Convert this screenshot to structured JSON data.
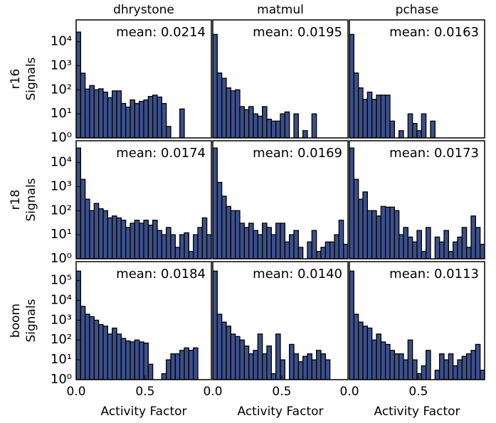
{
  "chart_data": [
    {
      "type": "histogram",
      "title": "dhrystone",
      "ylabel": [
        "r16",
        "Signals"
      ],
      "annotation": "mean: 0.0214",
      "log_y": true,
      "color": "#3b4f8a",
      "bins": [
        0,
        0.0327,
        0.0653,
        0.098,
        0.1307,
        0.1633,
        0.196,
        0.2287,
        0.2613,
        0.294,
        0.3267,
        0.3593,
        0.392,
        0.4247,
        0.4573,
        0.49,
        0.5227,
        0.5553,
        0.588,
        0.6207,
        0.6533,
        0.686,
        0.7187,
        0.7513,
        0.784,
        0.8167,
        0.8493,
        0.882,
        0.9147,
        0.9473,
        0.98
      ],
      "values": [
        25000,
        490,
        107,
        150,
        100,
        110,
        80,
        47,
        90,
        90,
        27,
        19,
        38,
        27,
        33,
        38,
        53,
        60,
        50,
        27,
        3,
        0,
        0,
        16,
        0,
        0,
        0,
        0,
        0,
        0
      ],
      "xlim": [
        0,
        0.98
      ],
      "ylim": [
        1,
        80000
      ],
      "yticks": [
        {
          "value": 1,
          "label": "10⁰"
        },
        {
          "value": 10,
          "label": "10¹"
        },
        {
          "value": 100,
          "label": "10²"
        },
        {
          "value": 1000,
          "label": "10³"
        },
        {
          "value": 10000,
          "label": "10⁴"
        }
      ]
    },
    {
      "type": "histogram",
      "title": "matmul",
      "annotation": "mean: 0.0195",
      "log_y": true,
      "color": "#3b4f8a",
      "bins": [
        0,
        0.0327,
        0.0653,
        0.098,
        0.1307,
        0.1633,
        0.196,
        0.2287,
        0.2613,
        0.294,
        0.3267,
        0.3593,
        0.392,
        0.4247,
        0.4573,
        0.49,
        0.5227,
        0.5553,
        0.588,
        0.6207,
        0.6533,
        0.686,
        0.7187,
        0.7513,
        0.784,
        0.8167,
        0.8493,
        0.882,
        0.9147,
        0.9473,
        0.98
      ],
      "values": [
        20000,
        500,
        300,
        120,
        90,
        100,
        20,
        15,
        20,
        10,
        8,
        20,
        6,
        5,
        5,
        10,
        12,
        0,
        10,
        0,
        2,
        0,
        10,
        0,
        0,
        0,
        0,
        0,
        0,
        0
      ],
      "xlim": [
        0,
        0.98
      ],
      "ylim": [
        1,
        80000
      ]
    },
    {
      "type": "histogram",
      "title": "pchase",
      "annotation": "mean: 0.0163",
      "log_y": true,
      "color": "#3b4f8a",
      "bins": [
        0,
        0.0327,
        0.0653,
        0.098,
        0.1307,
        0.1633,
        0.196,
        0.2287,
        0.2613,
        0.294,
        0.3267,
        0.3593,
        0.392,
        0.4247,
        0.4573,
        0.49,
        0.5227,
        0.5553,
        0.588,
        0.6207,
        0.6533,
        0.686,
        0.7187,
        0.7513,
        0.784,
        0.8167,
        0.8493,
        0.882,
        0.9147,
        0.9473,
        0.98
      ],
      "values": [
        20000,
        500,
        120,
        40,
        80,
        40,
        60,
        60,
        60,
        5,
        0,
        2,
        1,
        10,
        4,
        2,
        10,
        1,
        5,
        0,
        0,
        0,
        0,
        0,
        0,
        0,
        0,
        0,
        0,
        0
      ],
      "xlim": [
        0,
        0.98
      ],
      "ylim": [
        1,
        80000
      ]
    },
    {
      "type": "histogram",
      "ylabel": [
        "r18",
        "Signals"
      ],
      "annotation": "mean: 0.0174",
      "log_y": true,
      "color": "#3b4f8a",
      "bins": [
        0,
        0.0327,
        0.0653,
        0.098,
        0.1307,
        0.1633,
        0.196,
        0.2287,
        0.2613,
        0.294,
        0.3267,
        0.3593,
        0.392,
        0.4247,
        0.4573,
        0.49,
        0.5227,
        0.5553,
        0.588,
        0.6207,
        0.6533,
        0.686,
        0.7187,
        0.7513,
        0.784,
        0.8167,
        0.8493,
        0.882,
        0.9147,
        0.9473,
        0.98
      ],
      "values": [
        40000,
        2000,
        300,
        100,
        200,
        120,
        100,
        50,
        60,
        50,
        40,
        20,
        30,
        40,
        30,
        40,
        25,
        40,
        15,
        10,
        20,
        10,
        3,
        10,
        12,
        2,
        10,
        20,
        50,
        10
      ],
      "xlim": [
        0,
        0.98
      ],
      "ylim": [
        1,
        80000
      ],
      "yticks": [
        {
          "value": 1,
          "label": "10⁰"
        },
        {
          "value": 10,
          "label": "10¹"
        },
        {
          "value": 100,
          "label": "10²"
        },
        {
          "value": 1000,
          "label": "10³"
        },
        {
          "value": 10000,
          "label": "10⁴"
        }
      ]
    },
    {
      "type": "histogram",
      "annotation": "mean: 0.0169",
      "log_y": true,
      "color": "#3b4f8a",
      "bins": [
        0,
        0.0327,
        0.0653,
        0.098,
        0.1307,
        0.1633,
        0.196,
        0.2287,
        0.2613,
        0.294,
        0.3267,
        0.3593,
        0.392,
        0.4247,
        0.4573,
        0.49,
        0.5227,
        0.5553,
        0.588,
        0.6207,
        0.6533,
        0.686,
        0.7187,
        0.7513,
        0.784,
        0.8167,
        0.8493,
        0.882,
        0.9147,
        0.9473,
        0.98
      ],
      "values": [
        40000,
        1500,
        400,
        150,
        100,
        100,
        30,
        20,
        30,
        15,
        10,
        30,
        20,
        10,
        30,
        30,
        5,
        10,
        15,
        3,
        1,
        5,
        15,
        2,
        3,
        5,
        5,
        10,
        40,
        4
      ],
      "xlim": [
        0,
        0.98
      ],
      "ylim": [
        1,
        80000
      ]
    },
    {
      "type": "histogram",
      "annotation": "mean: 0.0173",
      "log_y": true,
      "color": "#3b4f8a",
      "bins": [
        0,
        0.0327,
        0.0653,
        0.098,
        0.1307,
        0.1633,
        0.196,
        0.2287,
        0.2613,
        0.294,
        0.3267,
        0.3593,
        0.392,
        0.4247,
        0.4573,
        0.49,
        0.5227,
        0.5553,
        0.588,
        0.6207,
        0.6533,
        0.686,
        0.7187,
        0.7513,
        0.784,
        0.8167,
        0.8493,
        0.882,
        0.9147,
        0.9473,
        0.98
      ],
      "values": [
        40000,
        2000,
        300,
        600,
        100,
        100,
        60,
        150,
        140,
        140,
        100,
        10,
        20,
        8,
        5,
        15,
        2,
        20,
        1,
        8,
        5,
        15,
        2,
        5,
        8,
        20,
        3,
        60,
        20,
        4
      ],
      "xlim": [
        0,
        0.98
      ],
      "ylim": [
        1,
        80000
      ]
    },
    {
      "type": "histogram",
      "ylabel": [
        "boom",
        "Signals"
      ],
      "xlabel": "Activity Factor",
      "annotation": "mean: 0.0184",
      "log_y": true,
      "color": "#3b4f8a",
      "bins": [
        0,
        0.0327,
        0.0653,
        0.098,
        0.1307,
        0.1633,
        0.196,
        0.2287,
        0.2613,
        0.294,
        0.3267,
        0.3593,
        0.392,
        0.4247,
        0.4573,
        0.49,
        0.5227,
        0.5553,
        0.588,
        0.6207,
        0.6533,
        0.686,
        0.7187,
        0.7513,
        0.784,
        0.8167,
        0.8493,
        0.882,
        0.9147,
        0.9473,
        0.98
      ],
      "values": [
        300000,
        5000,
        2000,
        1500,
        1000,
        600,
        500,
        200,
        400,
        200,
        120,
        90,
        80,
        100,
        80,
        70,
        6,
        0,
        1,
        2,
        10,
        20,
        20,
        30,
        40,
        30,
        40,
        0,
        0,
        0
      ],
      "xlim": [
        0,
        0.98
      ],
      "ylim": [
        1,
        900000
      ],
      "xticks": [
        {
          "value": 0,
          "label": "0.0"
        },
        0.5
      ],
      "yticks": [
        {
          "value": 1,
          "label": "10⁰"
        },
        {
          "value": 10,
          "label": "10¹"
        },
        {
          "value": 100,
          "label": "10²"
        },
        {
          "value": 1000,
          "label": "10³"
        },
        {
          "value": 10000,
          "label": "10⁴"
        },
        {
          "value": 100000,
          "label": "10⁵"
        }
      ]
    },
    {
      "type": "histogram",
      "xlabel": "Activity Factor",
      "annotation": "mean: 0.0140",
      "log_y": true,
      "color": "#3b4f8a",
      "bins": [
        0,
        0.0327,
        0.0653,
        0.098,
        0.1307,
        0.1633,
        0.196,
        0.2287,
        0.2613,
        0.294,
        0.3267,
        0.3593,
        0.392,
        0.4247,
        0.4573,
        0.49,
        0.5227,
        0.5553,
        0.588,
        0.6207,
        0.6533,
        0.686,
        0.7187,
        0.7513,
        0.784,
        0.8167,
        0.8493,
        0.882,
        0.9147,
        0.9473,
        0.98
      ],
      "values": [
        300000,
        2000,
        800,
        500,
        200,
        150,
        100,
        50,
        20,
        30,
        200,
        20,
        50,
        2,
        200,
        10,
        1,
        60,
        20,
        8,
        15,
        20,
        10,
        30,
        20,
        10,
        0,
        0,
        0,
        0
      ],
      "xlim": [
        0,
        0.98
      ],
      "ylim": [
        1,
        900000
      ],
      "xticks": [
        {
          "value": 0,
          "label": "0.0"
        },
        0.5
      ]
    },
    {
      "type": "histogram",
      "xlabel": "Activity Factor",
      "annotation": "mean: 0.0113",
      "log_y": true,
      "color": "#3b4f8a",
      "bins": [
        0,
        0.0327,
        0.0653,
        0.098,
        0.1307,
        0.1633,
        0.196,
        0.2287,
        0.2613,
        0.294,
        0.3267,
        0.3593,
        0.392,
        0.4247,
        0.4573,
        0.49,
        0.5227,
        0.5553,
        0.588,
        0.6207,
        0.6533,
        0.686,
        0.7187,
        0.7513,
        0.784,
        0.8167,
        0.8493,
        0.882,
        0.9147,
        0.9473,
        0.98
      ],
      "values": [
        300000,
        2000,
        800,
        500,
        400,
        100,
        200,
        80,
        60,
        30,
        20,
        20,
        10,
        100,
        10,
        2,
        5,
        30,
        1,
        3,
        20,
        10,
        20,
        5,
        10,
        15,
        20,
        30,
        60,
        3
      ],
      "xlim": [
        0,
        0.98
      ],
      "ylim": [
        1,
        900000
      ],
      "xticks": [
        {
          "value": 0,
          "label": "0.0"
        },
        0.5
      ]
    }
  ]
}
